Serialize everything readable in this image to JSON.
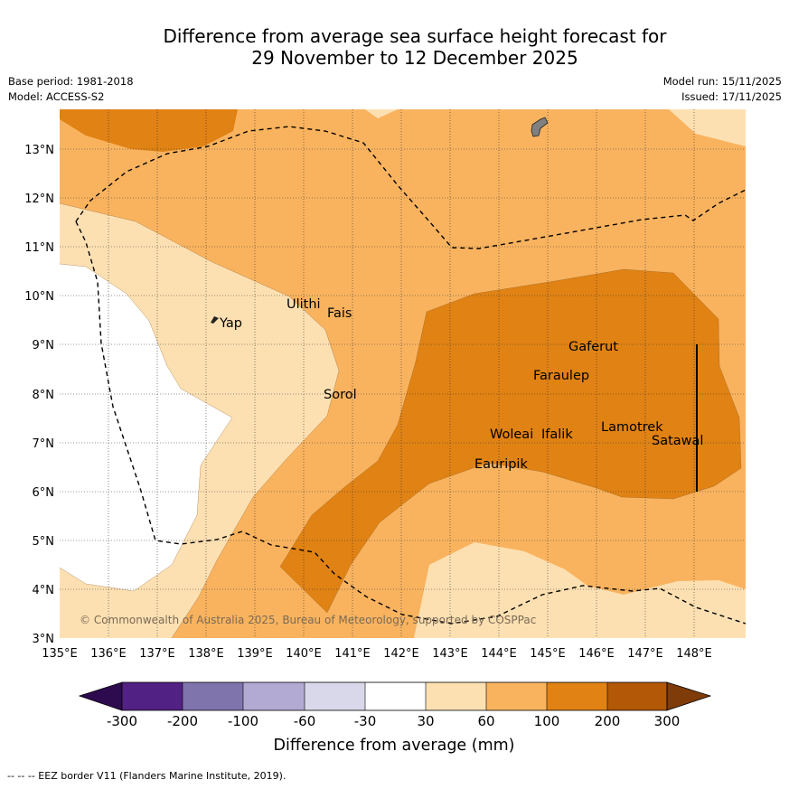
{
  "header": {
    "title_line1": "Difference from average sea surface height forecast for",
    "title_line2": "29 November to 12 December 2025",
    "base_period": "Base period: 1981-2018",
    "model": "Model: ACCESS-S2",
    "model_run": "Model run: 15/11/2025",
    "issued": "Issued: 17/11/2025"
  },
  "map": {
    "lon_labels": [
      "135°E",
      "136°E",
      "137°E",
      "138°E",
      "139°E",
      "140°E",
      "141°E",
      "142°E",
      "143°E",
      "144°E",
      "145°E",
      "146°E",
      "147°E",
      "148°E"
    ],
    "lat_labels": [
      "13°N",
      "12°N",
      "11°N",
      "10°N",
      "9°N",
      "8°N",
      "7°N",
      "6°N",
      "5°N",
      "4°N",
      "3°N"
    ],
    "places": [
      "Yap",
      "Ulithi",
      "Fais",
      "Sorol",
      "Gaferut",
      "Faraulep",
      "Woleai",
      "Ifalik",
      "Lamotrek",
      "Satawal",
      "Eauripik"
    ],
    "copyright": "© Commonwealth of Australia 2025, Bureau of Meteorology, supported by COSPPac"
  },
  "legend": {
    "ticks": [
      "-300",
      "-200",
      "-100",
      "-60",
      "-30",
      "30",
      "60",
      "100",
      "200",
      "300"
    ],
    "colors": [
      "#2e0a4e",
      "#522184",
      "#8074ad",
      "#b2aad2",
      "#d8d8ea",
      "#ffffff",
      "#fde0b2",
      "#f9b35f",
      "#e08214",
      "#b35806",
      "#7f3b08"
    ],
    "label": "Difference from average (mm)"
  },
  "footnote": "--  --  -- EEZ border V11 (Flanders Marine Institute, 2019)."
}
